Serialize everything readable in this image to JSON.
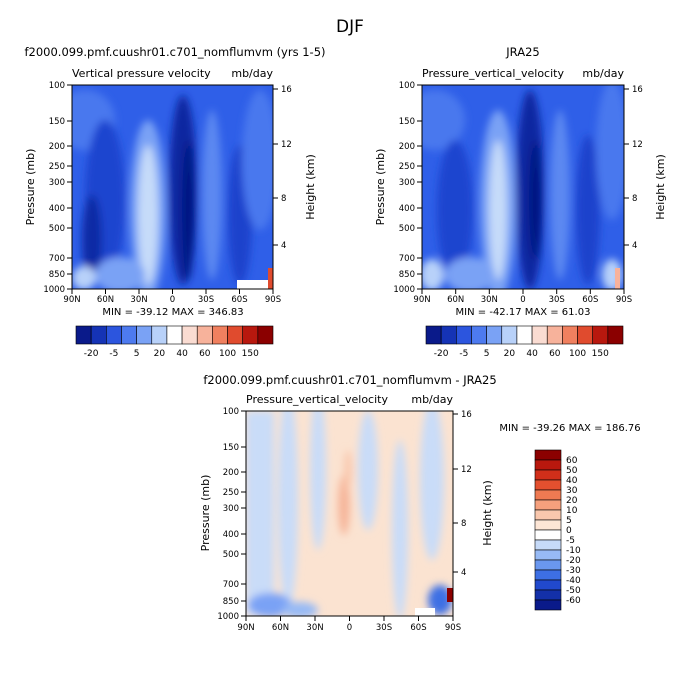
{
  "page_title": "DJF",
  "colors": {
    "deep_blue": "#0a1f8f",
    "mid_blue": "#2e5be8",
    "light_blue": "#6f9ef3",
    "pale_blue": "#c9dcf8",
    "pale_orange": "#fbe3d1",
    "deep_red": "#8b0d0d"
  },
  "chart_data": [
    {
      "type": "heatmap",
      "title": "f2000.099.pmf.cuushr01.c701_nomflumvm (yrs 1-5)",
      "subtitle_left": "Vertical pressure velocity",
      "subtitle_right": "mb/day",
      "ylabel": "Pressure (mb)",
      "y2label": "Height (km)",
      "x_ticks": [
        "90N",
        "60N",
        "30N",
        "0",
        "30S",
        "60S",
        "90S"
      ],
      "y_ticks": [
        "100",
        "150",
        "200",
        "250",
        "300",
        "400",
        "500",
        "700",
        "850",
        "1000"
      ],
      "y2_ticks": [
        "16",
        "12",
        "8",
        "4"
      ],
      "stats": "MIN = -39.12   MAX = 346.83",
      "colorbar_labels": [
        "-20",
        "-5",
        "5",
        "20",
        "40",
        "60",
        "100",
        "150"
      ],
      "colorbar_colors": [
        "#0a1a8a",
        "#1533b5",
        "#2c55de",
        "#4d7aef",
        "#7aa2f5",
        "#b8d1f9",
        "#ffffff",
        "#fadcd2",
        "#f7b29b",
        "#f0805f",
        "#e04b2e",
        "#b8180e",
        "#8b0000"
      ]
    },
    {
      "type": "heatmap",
      "title": "JRA25",
      "subtitle_left": "Pressure_vertical_velocity",
      "subtitle_right": "mb/day",
      "ylabel": "Pressure (mb)",
      "y2label": "Height (km)",
      "x_ticks": [
        "90N",
        "60N",
        "30N",
        "0",
        "30S",
        "60S",
        "90S"
      ],
      "y_ticks": [
        "100",
        "150",
        "200",
        "250",
        "300",
        "400",
        "500",
        "700",
        "850",
        "1000"
      ],
      "y2_ticks": [
        "16",
        "12",
        "8",
        "4"
      ],
      "stats": "MIN = -42.17   MAX =  61.03",
      "colorbar_labels": [
        "-20",
        "-5",
        "5",
        "20",
        "40",
        "60",
        "100",
        "150"
      ],
      "colorbar_colors": [
        "#0a1a8a",
        "#1533b5",
        "#2c55de",
        "#4d7aef",
        "#7aa2f5",
        "#b8d1f9",
        "#ffffff",
        "#fadcd2",
        "#f7b29b",
        "#f0805f",
        "#e04b2e",
        "#b8180e",
        "#8b0000"
      ]
    },
    {
      "type": "heatmap",
      "title": "f2000.099.pmf.cuushr01.c701_nomflumvm - JRA25",
      "subtitle_left": "Pressure_vertical_velocity",
      "subtitle_right": "mb/day",
      "ylabel": "Pressure (mb)",
      "y2label": "Height (km)",
      "x_ticks": [
        "90N",
        "60N",
        "30N",
        "0",
        "30S",
        "60S",
        "90S"
      ],
      "y_ticks": [
        "100",
        "150",
        "200",
        "250",
        "300",
        "400",
        "500",
        "700",
        "850",
        "1000"
      ],
      "y2_ticks": [
        "16",
        "12",
        "8",
        "4"
      ],
      "stats": "MIN = -39.26   MAX = 186.76",
      "colorbar_labels": [
        "60",
        "50",
        "40",
        "30",
        "20",
        "10",
        "5",
        "0",
        "-5",
        "-10",
        "-20",
        "-30",
        "-40",
        "-50",
        "-60"
      ],
      "colorbar_colors": [
        "#8b0000",
        "#b8180e",
        "#d12f1a",
        "#e3502f",
        "#ef7a52",
        "#f5a07d",
        "#f9c7ad",
        "#fde6d6",
        "#ffffff",
        "#c6daf8",
        "#97baf5",
        "#6a97ef",
        "#3d6fe4",
        "#2149cc",
        "#1330a8",
        "#0a1a8a"
      ]
    }
  ]
}
